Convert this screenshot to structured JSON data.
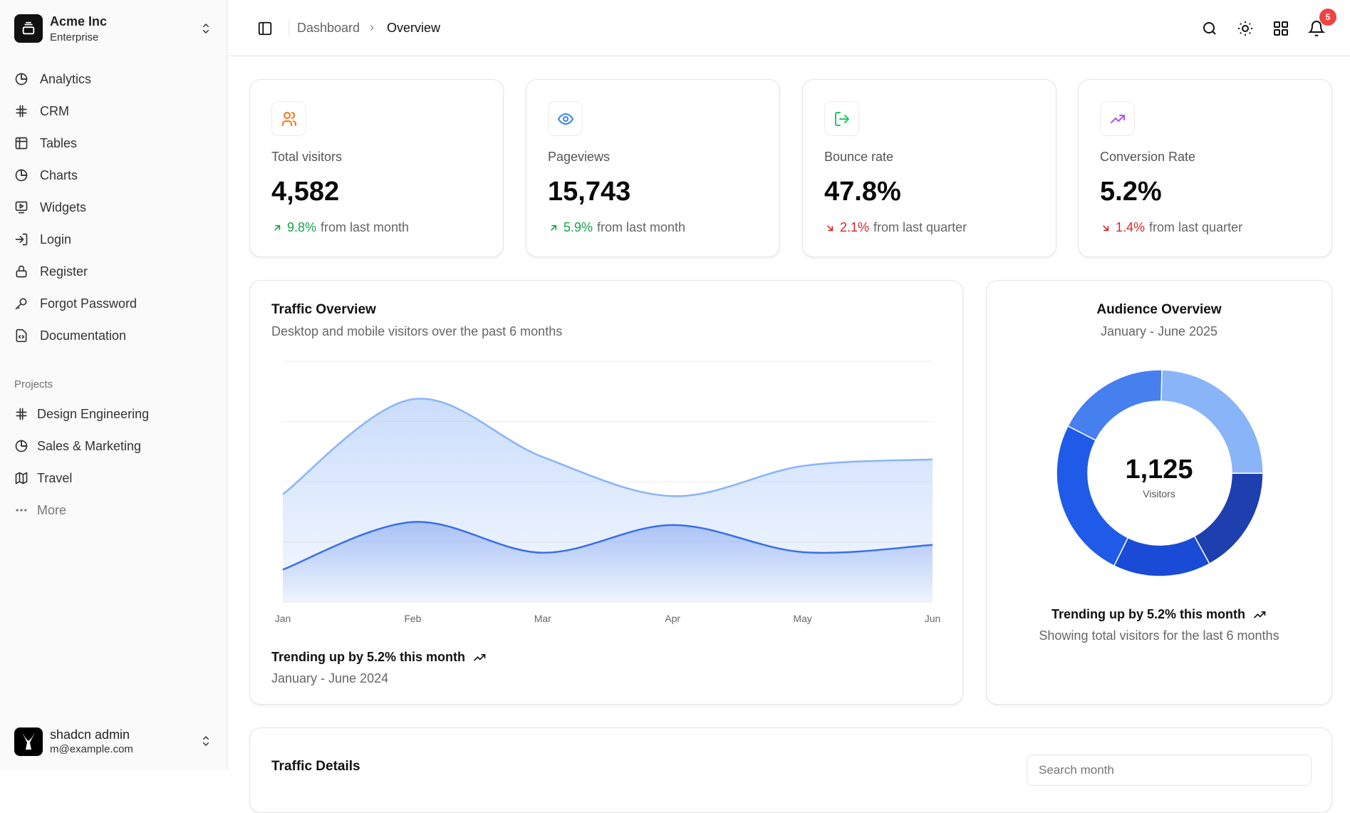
{
  "sidebar": {
    "team": {
      "name": "Acme Inc",
      "plan": "Enterprise"
    },
    "items": [
      {
        "label": "Analytics",
        "icon": "pie-chart-icon"
      },
      {
        "label": "CRM",
        "icon": "hash-icon"
      },
      {
        "label": "Tables",
        "icon": "table-icon"
      },
      {
        "label": "Charts",
        "icon": "pie-chart-icon"
      },
      {
        "label": "Widgets",
        "icon": "monitor-play-icon"
      },
      {
        "label": "Login",
        "icon": "log-in-icon"
      },
      {
        "label": "Register",
        "icon": "lock-icon"
      },
      {
        "label": "Forgot Password",
        "icon": "key-icon"
      },
      {
        "label": "Documentation",
        "icon": "file-code-icon"
      }
    ],
    "projects_label": "Projects",
    "projects": [
      {
        "label": "Design Engineering",
        "icon": "hash-icon"
      },
      {
        "label": "Sales & Marketing",
        "icon": "pie-chart-icon"
      },
      {
        "label": "Travel",
        "icon": "map-icon"
      },
      {
        "label": "More",
        "icon": "more-horizontal-icon"
      }
    ],
    "user": {
      "name": "shadcn admin",
      "email": "m@example.com"
    }
  },
  "header": {
    "breadcrumb": [
      "Dashboard",
      "Overview"
    ],
    "notification_count": "5"
  },
  "stats": [
    {
      "label": "Total visitors",
      "value": "4,582",
      "change": "9.8%",
      "suffix": "from last month",
      "direction": "up",
      "icon": "users-icon",
      "icon_color": "#f97316"
    },
    {
      "label": "Pageviews",
      "value": "15,743",
      "change": "5.9%",
      "suffix": "from last month",
      "direction": "up",
      "icon": "eye-icon",
      "icon_color": "#3b82f6"
    },
    {
      "label": "Bounce rate",
      "value": "47.8%",
      "change": "2.1%",
      "suffix": "from last quarter",
      "direction": "down",
      "icon": "log-out-icon",
      "icon_color": "#22c55e"
    },
    {
      "label": "Conversion Rate",
      "value": "5.2%",
      "change": "1.4%",
      "suffix": "from last quarter",
      "direction": "down",
      "icon": "trending-up-icon",
      "icon_color": "#a855f7"
    }
  ],
  "traffic": {
    "title": "Traffic Overview",
    "subtitle": "Desktop and mobile visitors over the past 6 months",
    "trend": "Trending up by 5.2% this month",
    "range": "January - June 2024"
  },
  "audience": {
    "title": "Audience Overview",
    "range": "January - June 2025",
    "total": "1,125",
    "total_label": "Visitors",
    "trend": "Trending up by 5.2% this month",
    "footer": "Showing total visitors for the last 6 months"
  },
  "details": {
    "title": "Traffic Details",
    "search_placeholder": "Search month"
  },
  "chart_data": [
    {
      "type": "area",
      "categories": [
        "Jan",
        "Feb",
        "Mar",
        "Apr",
        "May",
        "Jun"
      ],
      "ylim": [
        0,
        400
      ],
      "grid": true,
      "series": [
        {
          "values": [
            179,
            337,
            241,
            176,
            226,
            237
          ],
          "color": "#8ab4f8"
        },
        {
          "values": [
            54,
            133,
            82,
            128,
            83,
            95
          ],
          "color": "#3b6fe8"
        }
      ]
    },
    {
      "type": "pie",
      "donut": true,
      "values": [
        278,
        191,
        172,
        284,
        200
      ],
      "colors": [
        "#8ab4f8",
        "#1e3fae",
        "#1a4bd6",
        "#1f5be8",
        "#467fee"
      ]
    }
  ]
}
